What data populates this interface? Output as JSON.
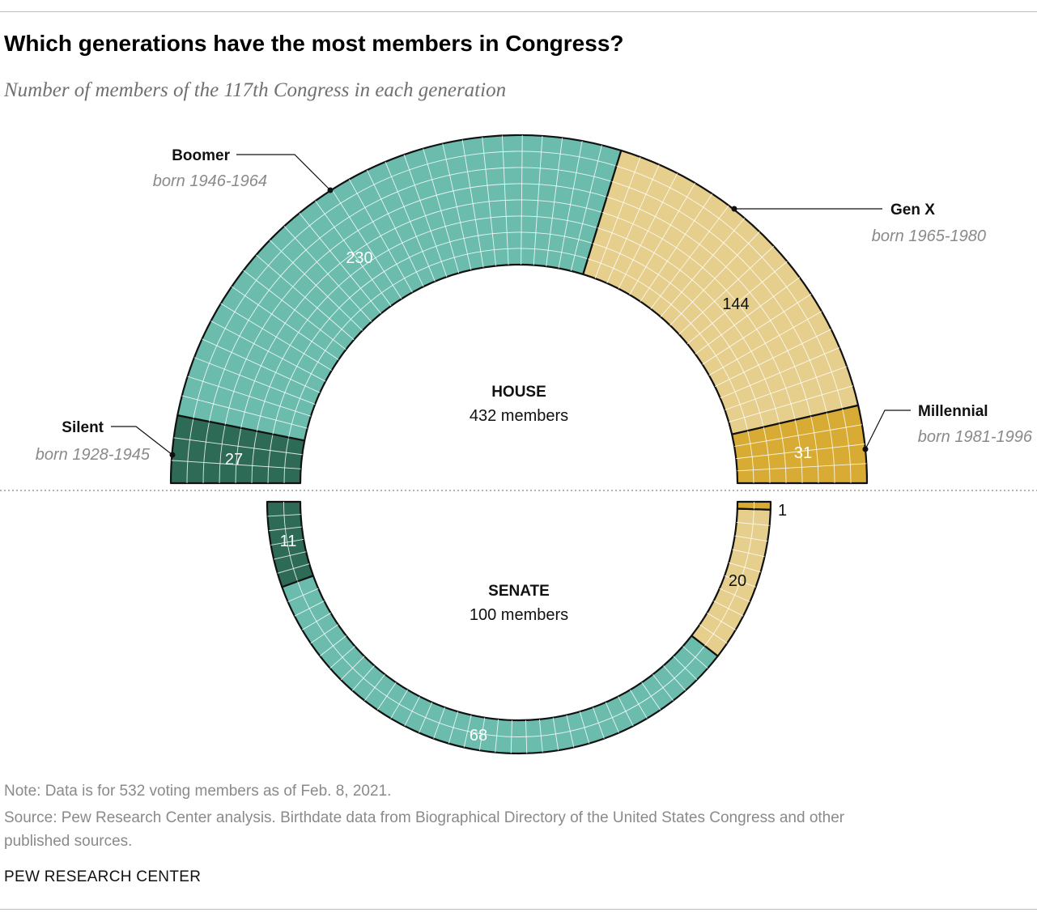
{
  "title": "Which generations have the most members in Congress?",
  "subtitle": "Number of members of the 117th Congress in each generation",
  "colors": {
    "silent": "#2e6b57",
    "boomer": "#6bbcad",
    "genx": "#e6ce8c",
    "millennial": "#d8ac34",
    "outline": "#111111",
    "grid": "#ffffff"
  },
  "generations": [
    {
      "key": "silent",
      "name": "Silent",
      "born": "born 1928-1945"
    },
    {
      "key": "boomer",
      "name": "Boomer",
      "born": "born 1946-1964"
    },
    {
      "key": "genx",
      "name": "Gen X",
      "born": "born 1965-1980"
    },
    {
      "key": "millennial",
      "name": "Millennial",
      "born": "born 1981-1996"
    }
  ],
  "chart_data": [
    {
      "type": "parliament-arc",
      "chamber": "HOUSE",
      "total_label": "432 members",
      "categories": [
        "Silent",
        "Boomer",
        "Gen X",
        "Millennial"
      ],
      "values": [
        27,
        230,
        144,
        31
      ],
      "labels": [
        "27",
        "230",
        "144",
        "31"
      ]
    },
    {
      "type": "parliament-arc",
      "chamber": "SENATE",
      "total_label": "100 members",
      "categories": [
        "Silent",
        "Boomer",
        "Gen X",
        "Millennial"
      ],
      "values": [
        11,
        68,
        20,
        1
      ],
      "labels": [
        "11",
        "68",
        "20",
        "1"
      ]
    }
  ],
  "footer": {
    "note": "Note: Data is for 532 voting members as of Feb. 8, 2021.",
    "source_line1": "Source: Pew Research Center analysis. Birthdate data from Biographical Directory of the United States Congress and other",
    "source_line2": "published sources.",
    "brand": "PEW RESEARCH CENTER"
  }
}
